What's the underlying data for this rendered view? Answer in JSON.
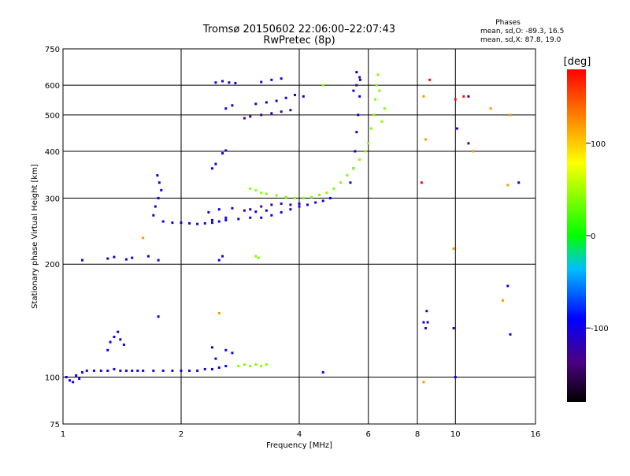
{
  "chart_data": {
    "type": "scatter",
    "title": "Tromsø 20150602 22:06:00–22:07:43",
    "subtitle": "RwPretec (8p)",
    "xlabel": "Frequency [MHz]",
    "ylabel": "Stationary phase Virtual Height [km]",
    "x_scale": "log",
    "y_scale": "log",
    "xlim": [
      1,
      16
    ],
    "ylim": [
      75,
      750
    ],
    "x_ticks": [
      1,
      2,
      4,
      6,
      8,
      10,
      16
    ],
    "x_tick_labels": [
      "1",
      "2",
      "4",
      "6",
      "8",
      "10",
      "16"
    ],
    "y_ticks": [
      75,
      100,
      200,
      300,
      400,
      500,
      600,
      750
    ],
    "y_tick_labels": [
      "75",
      "100",
      "200",
      "300",
      "400",
      "500",
      "600",
      "750"
    ],
    "grid": true,
    "phases_legend": {
      "heading": "Phases",
      "line1": "mean, sd,O: -89.3, 16.5",
      "line2": "mean, sd,X:  87.8, 19.0"
    },
    "colorbar": {
      "label": "[deg]",
      "range": [
        -180,
        180
      ],
      "ticks": [
        100,
        0,
        -100
      ],
      "tick_labels": [
        "100",
        "0",
        "-100"
      ]
    },
    "series": [
      {
        "color_phase": -100,
        "points": [
          [
            1.02,
            100
          ],
          [
            1.04,
            98
          ],
          [
            1.06,
            97
          ],
          [
            1.08,
            101
          ],
          [
            1.1,
            99
          ],
          [
            1.12,
            103
          ],
          [
            1.15,
            104
          ],
          [
            1.2,
            104
          ],
          [
            1.25,
            104
          ],
          [
            1.3,
            104
          ],
          [
            1.35,
            105
          ],
          [
            1.4,
            104
          ],
          [
            1.45,
            104
          ],
          [
            1.5,
            104
          ],
          [
            1.55,
            104
          ],
          [
            1.6,
            104
          ],
          [
            1.7,
            104
          ],
          [
            1.8,
            104
          ],
          [
            1.9,
            104
          ],
          [
            2.0,
            104
          ],
          [
            2.1,
            104
          ],
          [
            2.2,
            104
          ],
          [
            2.3,
            105
          ],
          [
            2.4,
            105
          ],
          [
            2.5,
            106
          ],
          [
            2.6,
            107
          ],
          [
            1.3,
            118
          ],
          [
            1.32,
            124
          ],
          [
            1.35,
            128
          ],
          [
            1.38,
            132
          ],
          [
            1.4,
            126
          ],
          [
            1.43,
            122
          ],
          [
            1.75,
            145
          ],
          [
            2.4,
            120
          ],
          [
            2.45,
            112
          ],
          [
            2.6,
            118
          ],
          [
            2.7,
            116
          ],
          [
            1.12,
            205
          ],
          [
            1.3,
            207
          ],
          [
            1.35,
            209
          ],
          [
            1.45,
            206
          ],
          [
            1.5,
            208
          ],
          [
            1.65,
            210
          ],
          [
            1.75,
            205
          ],
          [
            1.7,
            270
          ],
          [
            1.72,
            285
          ],
          [
            1.75,
            300
          ],
          [
            1.78,
            315
          ],
          [
            1.76,
            330
          ],
          [
            1.74,
            345
          ],
          [
            1.8,
            260
          ],
          [
            1.9,
            258
          ],
          [
            2.0,
            258
          ],
          [
            2.1,
            257
          ],
          [
            2.2,
            256
          ],
          [
            2.3,
            257
          ],
          [
            2.4,
            258
          ],
          [
            2.5,
            260
          ],
          [
            2.6,
            262
          ],
          [
            2.8,
            264
          ],
          [
            3.0,
            266
          ],
          [
            3.2,
            266
          ],
          [
            3.4,
            270
          ],
          [
            3.6,
            275
          ],
          [
            3.8,
            280
          ],
          [
            4.0,
            285
          ],
          [
            4.2,
            288
          ],
          [
            4.4,
            292
          ],
          [
            4.6,
            295
          ],
          [
            4.8,
            300
          ],
          [
            2.35,
            275
          ],
          [
            2.5,
            280
          ],
          [
            2.7,
            282
          ],
          [
            2.9,
            278
          ],
          [
            3.1,
            276
          ],
          [
            3.3,
            278
          ],
          [
            2.4,
            262
          ],
          [
            2.6,
            266
          ],
          [
            5.4,
            330
          ],
          [
            5.5,
            360
          ],
          [
            5.55,
            400
          ],
          [
            5.6,
            450
          ],
          [
            5.65,
            500
          ],
          [
            5.7,
            560
          ],
          [
            5.72,
            620
          ],
          [
            5.5,
            580
          ],
          [
            5.6,
            650
          ],
          [
            2.45,
            610
          ],
          [
            2.55,
            615
          ],
          [
            2.65,
            610
          ],
          [
            2.75,
            608
          ],
          [
            3.2,
            612
          ],
          [
            3.4,
            620
          ],
          [
            3.6,
            625
          ],
          [
            2.6,
            520
          ],
          [
            2.7,
            530
          ],
          [
            3.1,
            535
          ],
          [
            3.3,
            540
          ],
          [
            3.5,
            545
          ],
          [
            3.7,
            555
          ],
          [
            3.9,
            565
          ],
          [
            4.1,
            560
          ],
          [
            2.4,
            360
          ],
          [
            2.45,
            370
          ],
          [
            2.55,
            395
          ],
          [
            2.6,
            402
          ],
          [
            2.5,
            205
          ],
          [
            2.55,
            210
          ],
          [
            4.6,
            103
          ],
          [
            10.0,
            100
          ],
          [
            8.3,
            140
          ],
          [
            9.9,
            135
          ],
          [
            13.8,
            130
          ],
          [
            13.6,
            175
          ],
          [
            14.5,
            330
          ],
          [
            10.1,
            460
          ]
        ]
      },
      {
        "color_phase": -130,
        "points": [
          [
            2.9,
            490
          ],
          [
            3.0,
            495
          ],
          [
            3.2,
            500
          ],
          [
            3.4,
            505
          ],
          [
            3.6,
            510
          ],
          [
            3.8,
            515
          ],
          [
            3.0,
            280
          ],
          [
            3.2,
            285
          ],
          [
            3.4,
            288
          ],
          [
            3.6,
            290
          ],
          [
            3.8,
            288
          ],
          [
            4.0,
            290
          ],
          [
            5.7,
            630
          ],
          [
            5.6,
            600
          ],
          [
            8.4,
            135
          ],
          [
            8.5,
            140
          ],
          [
            8.45,
            150
          ],
          [
            10.8,
            560
          ],
          [
            10.8,
            420
          ]
        ]
      },
      {
        "color_phase": 40,
        "points": [
          [
            2.8,
            107
          ],
          [
            2.9,
            108
          ],
          [
            3.0,
            107
          ],
          [
            3.1,
            108
          ],
          [
            3.2,
            107
          ],
          [
            3.3,
            108
          ],
          [
            3.0,
            318
          ],
          [
            3.1,
            315
          ],
          [
            3.2,
            310
          ],
          [
            3.3,
            308
          ],
          [
            3.5,
            305
          ],
          [
            3.7,
            302
          ],
          [
            3.9,
            300
          ],
          [
            4.1,
            300
          ],
          [
            4.3,
            302
          ],
          [
            4.5,
            306
          ],
          [
            4.7,
            310
          ],
          [
            4.9,
            318
          ],
          [
            5.1,
            330
          ],
          [
            5.3,
            345
          ],
          [
            5.5,
            360
          ],
          [
            5.7,
            380
          ],
          [
            5.9,
            400
          ],
          [
            6.0,
            420
          ],
          [
            6.1,
            460
          ],
          [
            6.2,
            500
          ],
          [
            6.25,
            550
          ],
          [
            6.3,
            600
          ],
          [
            6.35,
            640
          ],
          [
            6.4,
            580
          ],
          [
            6.5,
            480
          ],
          [
            6.6,
            520
          ],
          [
            3.1,
            210
          ],
          [
            3.15,
            208
          ],
          [
            4.6,
            600
          ]
        ]
      },
      {
        "color_phase": 120,
        "points": [
          [
            1.6,
            235
          ],
          [
            2.5,
            148
          ],
          [
            8.3,
            97
          ],
          [
            8.4,
            430
          ],
          [
            9.9,
            220
          ],
          [
            11.1,
            400
          ],
          [
            13.2,
            160
          ],
          [
            13.6,
            325
          ],
          [
            13.8,
            500
          ],
          [
            12.3,
            520
          ],
          [
            8.3,
            560
          ]
        ]
      },
      {
        "color_phase": 175,
        "points": [
          [
            8.2,
            330
          ],
          [
            8.6,
            620
          ],
          [
            10.0,
            550
          ],
          [
            10.5,
            560
          ]
        ]
      }
    ]
  }
}
